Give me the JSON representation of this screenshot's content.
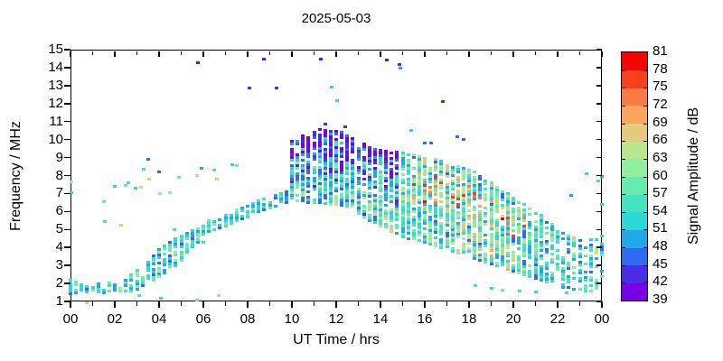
{
  "chart_data": {
    "type": "scatter",
    "title": "2025-05-03",
    "xlabel": "UT Time / hrs",
    "ylabel": "Frequency / MHz",
    "xlim": [
      0,
      24
    ],
    "ylim": [
      1,
      15
    ],
    "grid": false,
    "x_tick_labels": [
      "00",
      "02",
      "04",
      "06",
      "08",
      "10",
      "12",
      "14",
      "16",
      "18",
      "20",
      "22",
      "00"
    ],
    "x_major_hours": [
      0,
      2,
      4,
      6,
      8,
      10,
      12,
      14,
      16,
      18,
      20,
      22,
      24
    ],
    "x_minor_hours": [
      1,
      3,
      5,
      7,
      9,
      11,
      13,
      15,
      17,
      19,
      21,
      23
    ],
    "y_tick_labels": [
      "1",
      "2",
      "3",
      "4",
      "5",
      "6",
      "7",
      "8",
      "9",
      "10",
      "11",
      "12",
      "13",
      "14",
      "15"
    ],
    "colorbar": {
      "label": "Signal Amplitude / dB",
      "min": 39,
      "max": 81,
      "step": 3,
      "tick_labels": [
        "39",
        "42",
        "45",
        "48",
        "51",
        "54",
        "57",
        "60",
        "63",
        "66",
        "69",
        "72",
        "75",
        "78",
        "81"
      ],
      "colors_low_to_high": [
        "#7a00e6",
        "#4b2ce8",
        "#2f6bf0",
        "#22a8e8",
        "#2fd8d8",
        "#45e3c2",
        "#67ebb1",
        "#92ee9e",
        "#bce58f",
        "#e2cb7d",
        "#fba55f",
        "#fa7a48",
        "#f9401e",
        "#fa0000"
      ]
    },
    "bands_format": "[UT_hour, freq_min_MHz, freq_max_MHz, amp_min_dB, amp_max_dB, fill_fraction, mode(0=uniform,1=colder_at_top,2=warm_patches_mid)]",
    "bands": [
      [
        0.0,
        1.45,
        2.25,
        45,
        60,
        0.8,
        0
      ],
      [
        0.25,
        1.5,
        2.1,
        48,
        60,
        0.8,
        0
      ],
      [
        0.5,
        1.5,
        2.05,
        48,
        57,
        0.7,
        0
      ],
      [
        0.75,
        1.55,
        2.1,
        45,
        57,
        0.8,
        0
      ],
      [
        1.0,
        1.5,
        2.0,
        48,
        60,
        0.7,
        0
      ],
      [
        1.25,
        1.55,
        2.1,
        48,
        57,
        0.8,
        0
      ],
      [
        1.5,
        1.5,
        2.0,
        45,
        54,
        0.7,
        0
      ],
      [
        1.75,
        1.6,
        2.1,
        48,
        60,
        0.8,
        0
      ],
      [
        2.0,
        1.5,
        2.05,
        48,
        57,
        0.7,
        0
      ],
      [
        2.25,
        1.6,
        2.15,
        51,
        63,
        0.8,
        0
      ],
      [
        2.5,
        1.6,
        2.2,
        48,
        60,
        0.8,
        0
      ],
      [
        2.75,
        1.6,
        2.5,
        48,
        60,
        0.8,
        0
      ],
      [
        3.0,
        1.7,
        2.75,
        48,
        63,
        0.8,
        0
      ],
      [
        3.25,
        1.9,
        3.0,
        45,
        63,
        0.75,
        0
      ],
      [
        3.5,
        2.0,
        3.3,
        48,
        63,
        0.8,
        0
      ],
      [
        3.75,
        2.2,
        3.6,
        45,
        60,
        0.75,
        0
      ],
      [
        4.0,
        2.4,
        3.9,
        45,
        63,
        0.8,
        0
      ],
      [
        4.25,
        2.6,
        4.1,
        48,
        63,
        0.75,
        0
      ],
      [
        4.5,
        2.8,
        4.3,
        45,
        60,
        0.8,
        0
      ],
      [
        4.75,
        3.0,
        4.5,
        48,
        63,
        0.75,
        0
      ],
      [
        5.0,
        3.3,
        4.7,
        45,
        60,
        0.8,
        0
      ],
      [
        5.25,
        3.6,
        4.85,
        48,
        60,
        0.75,
        0
      ],
      [
        5.5,
        3.9,
        5.0,
        45,
        60,
        0.8,
        0
      ],
      [
        5.75,
        4.15,
        5.1,
        48,
        63,
        0.75,
        0
      ],
      [
        6.0,
        4.3,
        5.2,
        48,
        60,
        0.8,
        0
      ],
      [
        6.25,
        4.9,
        5.5,
        45,
        60,
        0.8,
        0
      ],
      [
        6.5,
        5.0,
        5.6,
        48,
        60,
        0.75,
        0
      ],
      [
        6.75,
        5.1,
        5.7,
        45,
        57,
        0.8,
        0
      ],
      [
        7.0,
        5.2,
        5.85,
        48,
        60,
        0.75,
        0
      ],
      [
        7.25,
        5.35,
        6.0,
        45,
        60,
        0.8,
        0
      ],
      [
        7.5,
        5.5,
        6.1,
        48,
        63,
        0.75,
        0
      ],
      [
        7.75,
        5.6,
        6.2,
        45,
        57,
        0.8,
        0
      ],
      [
        8.0,
        5.7,
        6.35,
        48,
        60,
        0.8,
        0
      ],
      [
        8.25,
        5.85,
        6.5,
        45,
        60,
        0.75,
        0
      ],
      [
        8.5,
        6.0,
        6.6,
        48,
        63,
        0.8,
        0
      ],
      [
        8.75,
        6.1,
        6.7,
        45,
        57,
        0.75,
        0
      ],
      [
        9.0,
        6.2,
        6.8,
        48,
        60,
        0.8,
        0
      ],
      [
        9.25,
        6.3,
        6.9,
        45,
        60,
        0.75,
        0
      ],
      [
        9.5,
        6.4,
        7.0,
        48,
        60,
        0.8,
        0
      ],
      [
        9.75,
        6.5,
        7.1,
        45,
        57,
        0.75,
        0
      ],
      [
        10.0,
        6.6,
        9.9,
        45,
        63,
        0.85,
        1
      ],
      [
        10.25,
        6.6,
        10.1,
        48,
        66,
        0.85,
        1
      ],
      [
        10.5,
        6.6,
        10.3,
        45,
        63,
        0.9,
        1
      ],
      [
        10.75,
        6.5,
        10.2,
        45,
        60,
        0.8,
        1
      ],
      [
        11.0,
        6.5,
        10.45,
        45,
        63,
        0.9,
        1
      ],
      [
        11.25,
        6.5,
        10.55,
        45,
        66,
        0.85,
        1
      ],
      [
        11.5,
        6.45,
        10.6,
        45,
        63,
        0.9,
        1
      ],
      [
        11.75,
        6.4,
        10.5,
        45,
        63,
        0.85,
        1
      ],
      [
        12.0,
        6.4,
        10.55,
        45,
        66,
        0.9,
        1
      ],
      [
        12.25,
        6.35,
        10.4,
        45,
        63,
        0.85,
        1
      ],
      [
        12.5,
        6.3,
        10.3,
        45,
        63,
        0.9,
        1
      ],
      [
        12.75,
        6.0,
        10.1,
        45,
        66,
        0.85,
        1
      ],
      [
        13.0,
        5.9,
        9.9,
        45,
        63,
        0.85,
        1
      ],
      [
        13.25,
        5.7,
        9.75,
        45,
        66,
        0.8,
        1
      ],
      [
        13.5,
        5.5,
        9.6,
        48,
        66,
        0.85,
        1
      ],
      [
        13.75,
        5.4,
        9.5,
        45,
        66,
        0.8,
        1
      ],
      [
        14.0,
        5.2,
        9.5,
        48,
        69,
        0.85,
        1
      ],
      [
        14.25,
        5.0,
        9.4,
        45,
        66,
        0.8,
        1
      ],
      [
        14.5,
        4.9,
        9.35,
        48,
        69,
        0.85,
        1
      ],
      [
        14.75,
        4.8,
        9.3,
        45,
        66,
        0.8,
        1
      ],
      [
        15.0,
        4.6,
        9.3,
        48,
        66,
        0.85,
        2
      ],
      [
        15.25,
        4.5,
        9.25,
        48,
        66,
        0.85,
        2
      ],
      [
        15.5,
        4.5,
        9.2,
        45,
        66,
        0.85,
        2
      ],
      [
        15.75,
        4.4,
        9.1,
        48,
        66,
        0.85,
        2
      ],
      [
        16.0,
        4.3,
        9.0,
        45,
        69,
        0.85,
        2
      ],
      [
        16.25,
        4.2,
        8.95,
        48,
        66,
        0.85,
        2
      ],
      [
        16.5,
        4.1,
        8.9,
        45,
        69,
        0.9,
        2
      ],
      [
        16.75,
        4.0,
        8.8,
        48,
        66,
        0.85,
        2
      ],
      [
        17.0,
        3.9,
        8.7,
        45,
        69,
        0.85,
        2
      ],
      [
        17.25,
        3.8,
        8.6,
        48,
        66,
        0.85,
        2
      ],
      [
        17.5,
        3.7,
        8.55,
        45,
        69,
        0.85,
        2
      ],
      [
        17.75,
        3.6,
        8.5,
        48,
        69,
        0.85,
        2
      ],
      [
        18.0,
        3.5,
        8.4,
        45,
        66,
        0.85,
        2
      ],
      [
        18.25,
        3.4,
        8.2,
        48,
        69,
        0.8,
        2
      ],
      [
        18.5,
        3.3,
        8.0,
        45,
        69,
        0.85,
        2
      ],
      [
        18.75,
        3.2,
        7.8,
        48,
        66,
        0.8,
        2
      ],
      [
        19.0,
        3.1,
        7.6,
        45,
        72,
        0.85,
        2
      ],
      [
        19.25,
        3.0,
        7.4,
        48,
        69,
        0.8,
        2
      ],
      [
        19.5,
        2.9,
        7.2,
        45,
        69,
        0.8,
        2
      ],
      [
        19.75,
        2.8,
        7.0,
        48,
        72,
        0.8,
        2
      ],
      [
        20.0,
        2.7,
        6.8,
        45,
        69,
        0.8,
        2
      ],
      [
        20.25,
        2.6,
        6.6,
        48,
        66,
        0.75,
        2
      ],
      [
        20.5,
        2.5,
        6.4,
        45,
        66,
        0.8,
        2
      ],
      [
        20.75,
        2.4,
        6.2,
        48,
        63,
        0.7,
        0
      ],
      [
        21.0,
        2.3,
        6.0,
        45,
        63,
        0.7,
        0
      ],
      [
        21.25,
        2.2,
        5.8,
        48,
        63,
        0.65,
        0
      ],
      [
        21.5,
        2.1,
        5.6,
        45,
        60,
        0.7,
        0
      ],
      [
        21.75,
        2.0,
        5.4,
        48,
        63,
        0.65,
        0
      ],
      [
        22.0,
        1.9,
        5.2,
        45,
        60,
        0.65,
        0
      ],
      [
        22.25,
        1.8,
        5.0,
        48,
        60,
        0.55,
        0
      ],
      [
        22.5,
        1.8,
        4.8,
        45,
        60,
        0.55,
        0
      ],
      [
        22.75,
        1.7,
        4.6,
        48,
        63,
        0.5,
        0
      ],
      [
        23.0,
        1.7,
        4.4,
        45,
        60,
        0.55,
        0
      ],
      [
        23.25,
        1.6,
        4.2,
        48,
        60,
        0.5,
        0
      ],
      [
        23.5,
        1.6,
        4.5,
        45,
        63,
        0.55,
        0
      ],
      [
        23.75,
        1.6,
        4.8,
        48,
        66,
        0.5,
        0
      ],
      [
        24.0,
        1.8,
        5.3,
        45,
        66,
        0.6,
        0
      ]
    ],
    "points_format": "[UT_hour, freq_MHz, amplitude_dB]",
    "points": [
      [
        5.75,
        14.25,
        41
      ],
      [
        8.75,
        14.5,
        40
      ],
      [
        11.3,
        14.5,
        40
      ],
      [
        14.3,
        14.45,
        40
      ],
      [
        14.85,
        14.15,
        44
      ],
      [
        14.9,
        13.95,
        50
      ],
      [
        8.1,
        12.85,
        42
      ],
      [
        9.3,
        12.85,
        42
      ],
      [
        11.8,
        12.9,
        51
      ],
      [
        12.05,
        12.15,
        51
      ],
      [
        16.8,
        12.1,
        43
      ],
      [
        11.5,
        10.85,
        42
      ],
      [
        12.4,
        10.7,
        44
      ],
      [
        15.4,
        10.5,
        52
      ],
      [
        16.0,
        9.8,
        45
      ],
      [
        16.3,
        9.8,
        45
      ],
      [
        17.45,
        10.15,
        47
      ],
      [
        17.75,
        10.0,
        45
      ],
      [
        0.05,
        7.65,
        64
      ],
      [
        0.05,
        7.05,
        52
      ],
      [
        1.5,
        6.55,
        58
      ],
      [
        1.55,
        5.45,
        55
      ],
      [
        2.0,
        7.4,
        52
      ],
      [
        2.3,
        5.25,
        66
      ],
      [
        2.5,
        7.45,
        58
      ],
      [
        2.6,
        7.6,
        56
      ],
      [
        2.95,
        7.3,
        52
      ],
      [
        3.2,
        7.35,
        63
      ],
      [
        3.3,
        8.35,
        56
      ],
      [
        3.5,
        8.9,
        46
      ],
      [
        3.55,
        7.8,
        66
      ],
      [
        4.0,
        8.2,
        46
      ],
      [
        4.05,
        7.0,
        60
      ],
      [
        4.5,
        7.05,
        60
      ],
      [
        4.7,
        5.0,
        54
      ],
      [
        4.9,
        7.9,
        58
      ],
      [
        5.7,
        8.0,
        60
      ],
      [
        5.9,
        8.4,
        50
      ],
      [
        6.6,
        7.8,
        66
      ],
      [
        6.5,
        8.3,
        54
      ],
      [
        7.3,
        8.6,
        52
      ],
      [
        7.5,
        8.55,
        58
      ],
      [
        0.75,
        0.95,
        66
      ],
      [
        3.1,
        1.35,
        54
      ],
      [
        4.1,
        1.2,
        52
      ],
      [
        5.7,
        1.1,
        57
      ],
      [
        6.7,
        1.35,
        60
      ],
      [
        18.3,
        1.9,
        54
      ],
      [
        19.0,
        1.75,
        51
      ],
      [
        19.5,
        1.65,
        57
      ],
      [
        20.3,
        1.6,
        54
      ],
      [
        21.0,
        1.55,
        51
      ],
      [
        22.4,
        1.5,
        54
      ],
      [
        23.3,
        8.1,
        52
      ],
      [
        23.85,
        7.7,
        55
      ],
      [
        24.0,
        7.95,
        48
      ],
      [
        22.6,
        6.9,
        48
      ],
      [
        24.0,
        6.4,
        51
      ]
    ]
  }
}
